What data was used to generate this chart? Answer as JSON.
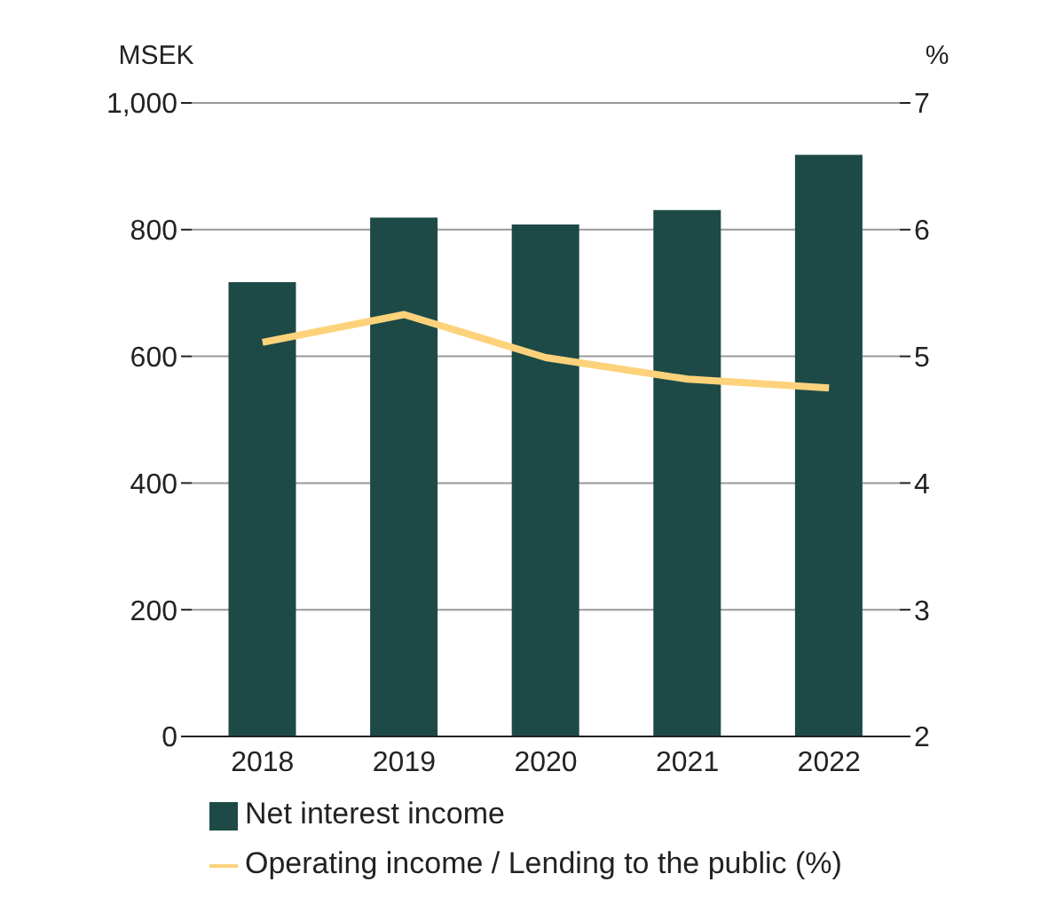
{
  "chart_data": {
    "type": "bar",
    "ylabel": "MSEK",
    "y2label": "%",
    "categories": [
      "2018",
      "2019",
      "2020",
      "2021",
      "2022"
    ],
    "series": [
      {
        "name": "Net interest income",
        "color": "#1d4a47",
        "values": [
          717,
          819,
          808,
          831,
          918
        ]
      },
      {
        "name": "Operating income / Lending to the public (%)",
        "type": "line",
        "axis": "y2",
        "color": "#fdd27a",
        "values": [
          5.11,
          5.33,
          4.99,
          4.82,
          4.75
        ]
      }
    ],
    "ylim": [
      0,
      1000
    ],
    "yticks": [
      0,
      200,
      400,
      600,
      800,
      {
        "value": 1000,
        "label": "1,000"
      }
    ],
    "y2lim": [
      2,
      7
    ],
    "y2ticks": [
      2,
      3,
      4,
      5,
      6,
      7
    ],
    "grid": "y",
    "legend": "bottom",
    "marker": "none"
  }
}
